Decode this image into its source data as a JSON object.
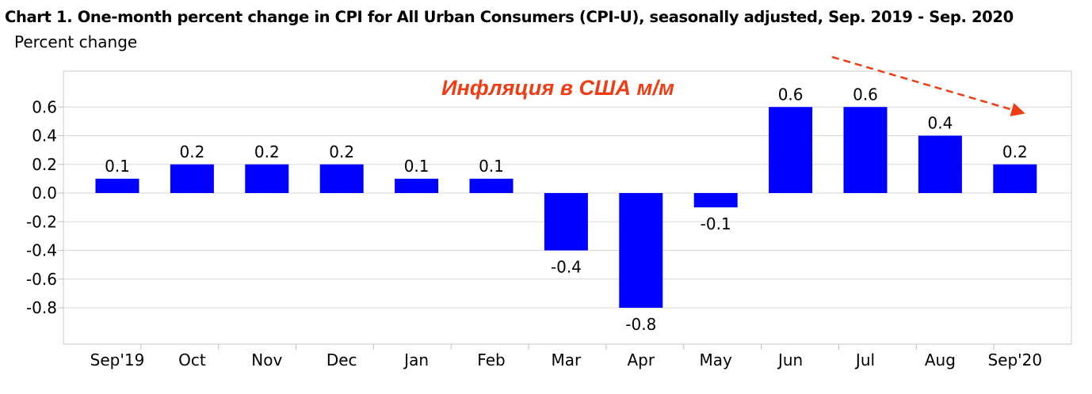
{
  "chart_data": {
    "type": "bar",
    "title": "Chart 1. One-month percent change in CPI for All Urban Consumers (CPI-U), seasonally adjusted, Sep. 2019 - Sep. 2020",
    "subtitle": "Percent change",
    "xlabel": "",
    "ylabel": "",
    "categories": [
      "Sep'19",
      "Oct",
      "Nov",
      "Dec",
      "Jan",
      "Feb",
      "Mar",
      "Apr",
      "May",
      "Jun",
      "Jul",
      "Aug",
      "Sep'20"
    ],
    "values": [
      0.1,
      0.2,
      0.2,
      0.2,
      0.1,
      0.1,
      -0.4,
      -0.8,
      -0.1,
      0.6,
      0.6,
      0.4,
      0.2
    ],
    "data_labels": [
      "0.1",
      "0.2",
      "0.2",
      "0.2",
      "0.1",
      "0.1",
      "-0.4",
      "-0.8",
      "-0.1",
      "0.6",
      "0.6",
      "0.4",
      "0.2"
    ],
    "ylim": [
      -1.0,
      0.8
    ],
    "yticks": [
      0.6,
      0.4,
      0.2,
      0.0,
      -0.2,
      -0.4,
      -0.6,
      -0.8
    ],
    "ytick_labels": [
      "0.6",
      "0.4",
      "0.2",
      "0.0",
      "-0.2",
      "-0.4",
      "-0.6",
      "-0.8"
    ],
    "grid": true,
    "legend": "none",
    "bar_color": "#0000FF",
    "annotations": [
      {
        "text": "Инфляция в США м/м",
        "color": "#F03C14",
        "style": "bold-italic"
      },
      {
        "type": "dashed-arrow",
        "color": "#F03C14",
        "from_category": "Jul",
        "to_category": "Sep'20",
        "direction": "downward"
      }
    ]
  }
}
